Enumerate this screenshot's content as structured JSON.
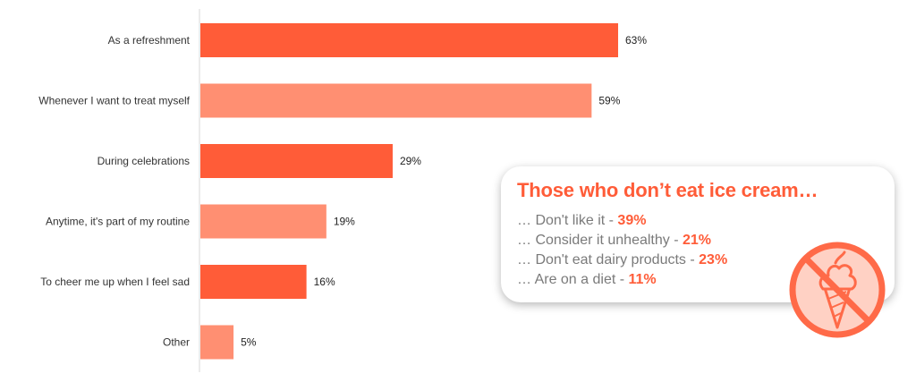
{
  "chart_data": {
    "type": "bar",
    "orientation": "horizontal",
    "categories": [
      "As a refreshment",
      "Whenever I want to treat myself",
      "During celebrations",
      "Anytime, it's part of my routine",
      "To cheer me up when I feel sad",
      "Other"
    ],
    "values": [
      63,
      59,
      29,
      19,
      16,
      5
    ],
    "value_labels": [
      "63%",
      "59%",
      "29%",
      "19%",
      "16%",
      "5%"
    ],
    "unit": "%",
    "xlim": [
      0,
      100
    ],
    "grid": false,
    "colors": [
      "#ff5c38",
      "#ff8f72",
      "#ff5c38",
      "#ff8f72",
      "#ff5c38",
      "#ff8f72"
    ]
  },
  "callout": {
    "title": "Those who don’t eat ice cream…",
    "reasons": [
      {
        "text": "… Don't like it - ",
        "pct": "39%"
      },
      {
        "text": "… Consider it unhealthy - ",
        "pct": "21%"
      },
      {
        "text": "… Don't eat dairy products - ",
        "pct": "23%"
      },
      {
        "text": "… Are on a diet - ",
        "pct": "11%"
      }
    ],
    "icon": "no-ice-cream-icon"
  },
  "colors": {
    "accent": "#ff5c38",
    "accent_light": "#ff8f72",
    "muted_text": "#7a7a7a"
  }
}
